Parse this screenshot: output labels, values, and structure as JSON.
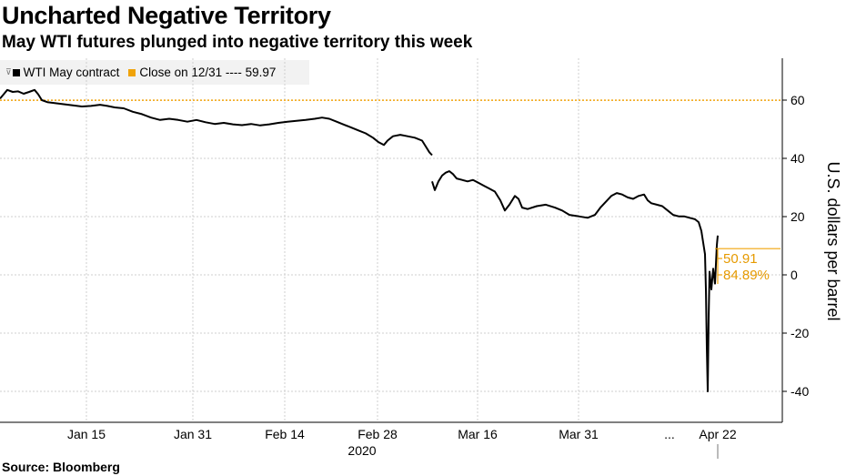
{
  "title": "Uncharted Negative Territory",
  "subtitle": "May WTI futures plunged into negative territory this week",
  "source": "Source: Bloomberg",
  "legend": [
    {
      "label": "WTI May contract",
      "color": "#000000"
    },
    {
      "label": "Close on 12/31 ---- 59.97",
      "color": "#f0a30a"
    }
  ],
  "chart_data": {
    "type": "line",
    "ylabel": "U.S. dollars per barrel",
    "ylim": [
      -50,
      75
    ],
    "yticks": [
      60,
      40,
      20,
      0,
      -20,
      -40
    ],
    "ytick_labels": [
      "60",
      "40",
      "20",
      "0",
      "-20",
      "-40"
    ],
    "xtick_labels": [
      "Jan 15",
      "Jan 31",
      "Feb 14",
      "Feb 28",
      "Mar 16",
      "Mar 31",
      "...",
      "Apr 22"
    ],
    "x_year_label": "2020",
    "grid": true,
    "reference_line": {
      "value": 59.97,
      "color": "#f0a30a"
    },
    "annotations": [
      "50.91",
      "84.89%"
    ],
    "series": [
      {
        "name": "WTI May contract",
        "color": "#000000",
        "segments": [
          [
            [
              0,
              60.5
            ],
            [
              4,
              62
            ],
            [
              8,
              63.5
            ],
            [
              14,
              62.8
            ],
            [
              20,
              63
            ],
            [
              26,
              62.2
            ],
            [
              32,
              62.8
            ],
            [
              38,
              63.5
            ],
            [
              42,
              62
            ],
            [
              46,
              60
            ],
            [
              52,
              59.3
            ],
            [
              60,
              59
            ],
            [
              70,
              58.6
            ],
            [
              80,
              58.2
            ],
            [
              90,
              57.8
            ],
            [
              100,
              58
            ],
            [
              110,
              58.4
            ],
            [
              118,
              58
            ],
            [
              126,
              57.5
            ],
            [
              136,
              57.2
            ],
            [
              146,
              56
            ],
            [
              156,
              55.2
            ],
            [
              166,
              54
            ],
            [
              176,
              53.2
            ],
            [
              186,
              53.6
            ],
            [
              196,
              53.2
            ],
            [
              206,
              52.6
            ],
            [
              216,
              53.2
            ],
            [
              226,
              52.4
            ],
            [
              236,
              51.8
            ],
            [
              246,
              52.2
            ],
            [
              256,
              51.7
            ],
            [
              266,
              51.4
            ],
            [
              276,
              51.8
            ],
            [
              286,
              51.3
            ],
            [
              296,
              51.7
            ],
            [
              306,
              52.2
            ],
            [
              316,
              52.6
            ],
            [
              326,
              52.9
            ],
            [
              336,
              53.2
            ],
            [
              346,
              53.6
            ],
            [
              354,
              54
            ],
            [
              362,
              53.6
            ],
            [
              370,
              52.6
            ],
            [
              378,
              51.6
            ],
            [
              386,
              50.6
            ],
            [
              394,
              49.6
            ],
            [
              402,
              48.6
            ],
            [
              410,
              47.1
            ],
            [
              416,
              45.6
            ],
            [
              422,
              44.6
            ],
            [
              426,
              46.1
            ],
            [
              432,
              47.6
            ],
            [
              440,
              48.1
            ],
            [
              448,
              47.6
            ],
            [
              456,
              47.1
            ],
            [
              464,
              46.1
            ],
            [
              468,
              44.1
            ],
            [
              472,
              42.1
            ],
            [
              475,
              41.1
            ]
          ],
          [
            [
              475,
              32.1
            ],
            [
              478,
              29.1
            ],
            [
              482,
              32.1
            ],
            [
              486,
              34.1
            ],
            [
              490,
              35.1
            ],
            [
              494,
              35.6
            ],
            [
              498,
              34.6
            ],
            [
              502,
              33.1
            ],
            [
              508,
              32.6
            ],
            [
              514,
              32.1
            ],
            [
              520,
              32.6
            ],
            [
              526,
              31.6
            ],
            [
              532,
              30.6
            ],
            [
              538,
              29.6
            ],
            [
              544,
              28.6
            ],
            [
              550,
              25.6
            ],
            [
              555,
              22.1
            ],
            [
              560,
              24.1
            ],
            [
              566,
              27.1
            ],
            [
              570,
              26.1
            ],
            [
              574,
              23.1
            ],
            [
              580,
              22.6
            ],
            [
              590,
              23.6
            ],
            [
              600,
              24.1
            ],
            [
              610,
              23.1
            ],
            [
              618,
              22.1
            ],
            [
              626,
              20.6
            ],
            [
              636,
              20.1
            ],
            [
              646,
              19.6
            ],
            [
              654,
              20.6
            ],
            [
              660,
              23.1
            ],
            [
              666,
              25.1
            ],
            [
              672,
              27.1
            ],
            [
              678,
              28.1
            ],
            [
              684,
              27.6
            ],
            [
              690,
              26.6
            ],
            [
              696,
              26.1
            ],
            [
              702,
              27.1
            ],
            [
              708,
              27.6
            ],
            [
              712,
              25.6
            ],
            [
              716,
              24.6
            ],
            [
              722,
              24.1
            ],
            [
              728,
              23.6
            ],
            [
              734,
              22.1
            ],
            [
              740,
              20.6
            ],
            [
              746,
              20.1
            ],
            [
              752,
              20.1
            ],
            [
              758,
              19.6
            ],
            [
              764,
              19.1
            ],
            [
              768,
              18.1
            ],
            [
              771,
              15.1
            ],
            [
              773,
              11.1
            ],
            [
              775,
              7.1
            ],
            [
              776,
              -5
            ],
            [
              777,
              -25
            ],
            [
              778,
              -40
            ],
            [
              779,
              -15
            ],
            [
              780,
              1.1
            ],
            [
              782,
              -5
            ],
            [
              784,
              2.1
            ],
            [
              786,
              -3
            ],
            [
              788,
              10.1
            ],
            [
              789,
              13.5
            ]
          ]
        ]
      }
    ]
  }
}
